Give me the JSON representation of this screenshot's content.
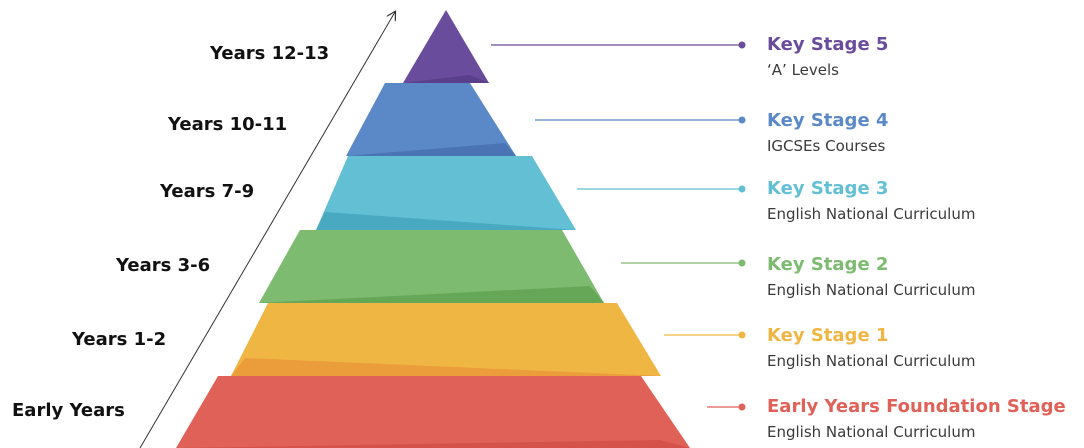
{
  "levels": [
    {
      "years": "Years 12-13",
      "stage": "Key Stage 5",
      "description": "‘A’ Levels",
      "color": "#6a4c9c",
      "shade": "#5a3f8a"
    },
    {
      "years": "Years 10-11",
      "stage": "Key Stage 4",
      "description": "IGCSEs Courses",
      "color": "#5b88c6",
      "shade": "#4b74b4"
    },
    {
      "years": "Years 7-9",
      "stage": "Key Stage 3",
      "description": "English National Curriculum",
      "color": "#62bfd4",
      "shade": "#49a9c1"
    },
    {
      "years": "Years 3-6",
      "stage": "Key Stage 2",
      "description": "English National Curriculum",
      "color": "#7dbb70",
      "shade": "#66a757"
    },
    {
      "years": "Years 1-2",
      "stage": "Key Stage 1",
      "description": "English National Curriculum",
      "color": "#f0b644",
      "shade": "#eb9d3c"
    },
    {
      "years": "Early Years",
      "stage": "Early Years Foundation Stage",
      "description": "English National Curriculum",
      "color": "#e06158",
      "shade": "#d4524a"
    }
  ]
}
